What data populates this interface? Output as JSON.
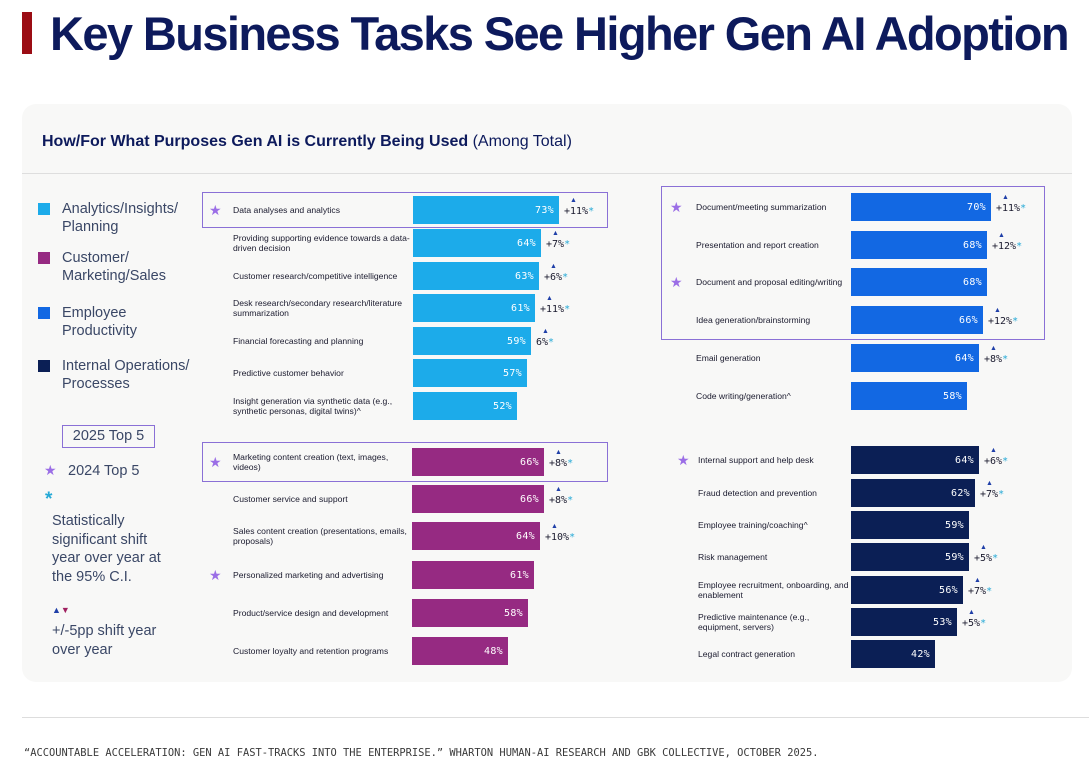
{
  "page": {
    "title": "Key Business Tasks See Higher Gen AI Adoption",
    "subtitle_bold": "How/For What Purposes Gen AI is Currently Being Used",
    "subtitle_rest": "(Among Total)",
    "footer": "“ACCOUNTABLE ACCELERATION: GEN AI FAST-TRACKS INTO THE ENTERPRISE.” WHARTON HUMAN-AI RESEARCH AND GBK COLLECTIVE, OCTOBER 2025."
  },
  "legend": {
    "categories": [
      {
        "label": "Analytics/Insights/ Planning",
        "color": "#1cabea"
      },
      {
        "label": "Customer/ Marketing/Sales",
        "color": "#962a82"
      },
      {
        "label": "Employee Productivity",
        "color": "#1268e3"
      },
      {
        "label": "Internal Operations/ Processes",
        "color": "#0b1f55"
      }
    ],
    "top5_2025": "2025 Top 5",
    "top5_2024": "2024 Top 5",
    "sig_symbol": "*",
    "sig_label": "Statistically significant shift year over year at the 95% C.I.",
    "shift_label": "+/-5pp shift year over year"
  },
  "chart_data": {
    "type": "bar",
    "orientation": "horizontal",
    "title": "How/For What Purposes Gen AI is Currently Being Used (Among Total)",
    "unit": "%",
    "groups": [
      {
        "name": "Analytics/Insights/Planning",
        "color": "#1cabea",
        "items": [
          {
            "label": "Data analyses and analytics",
            "value": 73,
            "change": "+11%",
            "sig": true,
            "top2024": true,
            "top2025": true
          },
          {
            "label": "Providing supporting evidence towards a data-driven decision",
            "value": 64,
            "change": "+7%",
            "sig": true,
            "top2024": false,
            "top2025": false
          },
          {
            "label": "Customer research/competitive intelligence",
            "value": 63,
            "change": "+6%",
            "sig": true,
            "top2024": false,
            "top2025": false
          },
          {
            "label": "Desk research/secondary research/literature summarization",
            "value": 61,
            "change": "+11%",
            "sig": true,
            "top2024": false,
            "top2025": false
          },
          {
            "label": "Financial forecasting and planning",
            "value": 59,
            "change": "6%",
            "sig": true,
            "top2024": false,
            "top2025": false
          },
          {
            "label": "Predictive customer behavior",
            "value": 57,
            "change": "",
            "sig": false,
            "top2024": false,
            "top2025": false
          },
          {
            "label": "Insight generation via synthetic data (e.g., synthetic personas, digital twins)^",
            "value": 52,
            "change": "",
            "sig": false,
            "top2024": false,
            "top2025": false
          }
        ]
      },
      {
        "name": "Customer/Marketing/Sales",
        "color": "#962a82",
        "items": [
          {
            "label": "Marketing content creation (text, images, videos)",
            "value": 66,
            "change": "+8%",
            "sig": true,
            "top2024": true,
            "top2025": true
          },
          {
            "label": "Customer service and support",
            "value": 66,
            "change": "+8%",
            "sig": true,
            "top2024": false,
            "top2025": false
          },
          {
            "label": "Sales content creation (presentations, emails, proposals)",
            "value": 64,
            "change": "+10%",
            "sig": true,
            "top2024": false,
            "top2025": false
          },
          {
            "label": "Personalized marketing and advertising",
            "value": 61,
            "change": "",
            "sig": false,
            "top2024": true,
            "top2025": false
          },
          {
            "label": "Product/service design and development",
            "value": 58,
            "change": "",
            "sig": false,
            "top2024": false,
            "top2025": false
          },
          {
            "label": "Customer loyalty and retention programs",
            "value": 48,
            "change": "",
            "sig": false,
            "top2024": false,
            "top2025": false
          }
        ]
      },
      {
        "name": "Employee Productivity",
        "color": "#1268e3",
        "items": [
          {
            "label": "Document/meeting summarization",
            "value": 70,
            "change": "+11%",
            "sig": true,
            "top2024": true,
            "top2025": true
          },
          {
            "label": "Presentation and report creation",
            "value": 68,
            "change": "+12%",
            "sig": true,
            "top2024": false,
            "top2025": true
          },
          {
            "label": "Document and proposal editing/writing",
            "value": 68,
            "change": "",
            "sig": false,
            "top2024": true,
            "top2025": true
          },
          {
            "label": "Idea generation/brainstorming",
            "value": 66,
            "change": "+12%",
            "sig": true,
            "top2024": false,
            "top2025": true
          },
          {
            "label": "Email generation",
            "value": 64,
            "change": "+8%",
            "sig": true,
            "top2024": false,
            "top2025": false
          },
          {
            "label": "Code writing/generation^",
            "value": 58,
            "change": "",
            "sig": false,
            "top2024": false,
            "top2025": false
          }
        ]
      },
      {
        "name": "Internal Operations/Processes",
        "color": "#0b1f55",
        "items": [
          {
            "label": "Internal support and help desk",
            "value": 64,
            "change": "+6%",
            "sig": true,
            "top2024": true,
            "top2025": false
          },
          {
            "label": "Fraud detection and prevention",
            "value": 62,
            "change": "+7%",
            "sig": true,
            "top2024": false,
            "top2025": false
          },
          {
            "label": "Employee training/coaching^",
            "value": 59,
            "change": "",
            "sig": false,
            "top2024": false,
            "top2025": false
          },
          {
            "label": "Risk management",
            "value": 59,
            "change": "+5%",
            "sig": true,
            "top2024": false,
            "top2025": false
          },
          {
            "label": "Employee recruitment, onboarding, and enablement",
            "value": 56,
            "change": "+7%",
            "sig": true,
            "top2024": false,
            "top2025": false
          },
          {
            "label": "Predictive maintenance (e.g., equipment, servers)",
            "value": 53,
            "change": "+5%",
            "sig": true,
            "top2024": false,
            "top2025": false
          },
          {
            "label": "Legal contract generation",
            "value": 42,
            "change": "",
            "sig": false,
            "top2024": false,
            "top2025": false
          }
        ]
      }
    ]
  }
}
